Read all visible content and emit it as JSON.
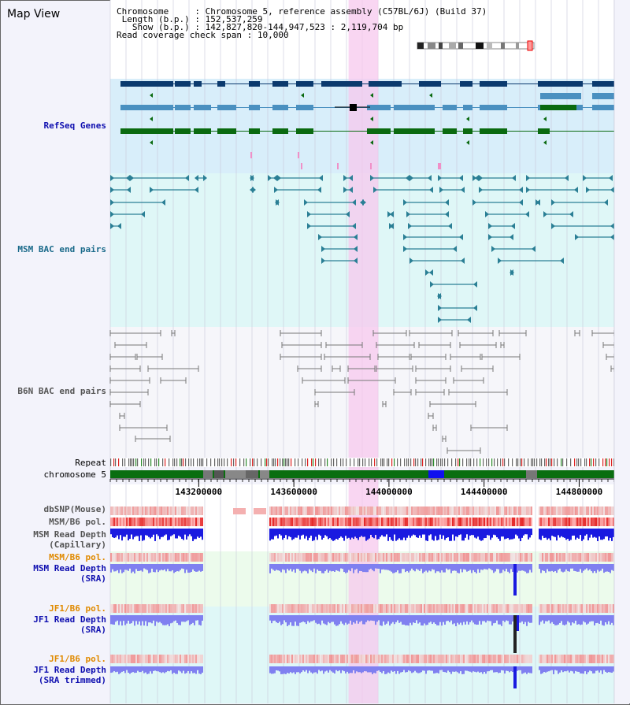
{
  "app": {
    "title": "Map View"
  },
  "info": {
    "chromosome_label": "Chromosome",
    "chromosome_value": "Chromosome 5, reference assembly (C57BL/6J) (Build 37)",
    "length_label": "Length (b.p.)",
    "length_value": "152,537,259",
    "show_label": "Show (b.p.)",
    "show_value": "142,827,820-144,947,523 : 2,119,704 bp",
    "coverage_label": "Read coverage check span",
    "coverage_value": "10,000"
  },
  "tracks": {
    "refseq": "RefSeq Genes",
    "msm_bac": "MSM BAC end pairs",
    "b6n_bac": "B6N BAC end pairs",
    "repeat": "Repeat",
    "chromosome": "chromosome 5",
    "dbsnp": "dbSNP(Mouse)",
    "msm_b6_pol": "MSM/B6 pol.",
    "msm_depth_cap_1": "MSM Read Depth",
    "msm_depth_cap_2": "(Capillary)",
    "msm_b6_pol_2": "MSM/B6 pol.",
    "msm_depth_sra_1": "MSM Read Depth",
    "msm_depth_sra_2": "(SRA)",
    "jf1_b6_pol": "JF1/B6 pol.",
    "jf1_depth_sra_1": "JF1 Read Depth",
    "jf1_depth_sra_2": "(SRA)",
    "jf1_b6_pol_2": "JF1/B6 pol.",
    "jf1_depth_trim_1": "JF1 Read Depth",
    "jf1_depth_trim_2": "(SRA trimmed)"
  },
  "axis": {
    "ticks": [
      143200000,
      143600000,
      144000000,
      144400000,
      144800000
    ],
    "tick_labels": [
      "143200000",
      "143600000",
      "144000000",
      "144400000",
      "144800000"
    ],
    "view_start": 142827820,
    "view_end": 144947523,
    "highlight_start": 143830000,
    "highlight_end": 143955000
  },
  "colors": {
    "refseq_bg": "#d8eefa",
    "msm_bg": "#dff7f7",
    "b6n_bg": "#f6f6fa",
    "highlight": "#f7c8ee",
    "gene_navy": "#0b3a6e",
    "gene_teal": "#4a90c0",
    "gene_green": "#0a6a10",
    "msm_line": "#2a7f95",
    "b6n_line": "#777777",
    "snp_red": "#ee2222",
    "depth_blue": "#1a1ae0",
    "depth_lavender": "#8080f0",
    "label_blue": "#1010b0",
    "label_teal": "#1a6a8a",
    "label_gray": "#555555",
    "label_orange": "#e08a00"
  }
}
